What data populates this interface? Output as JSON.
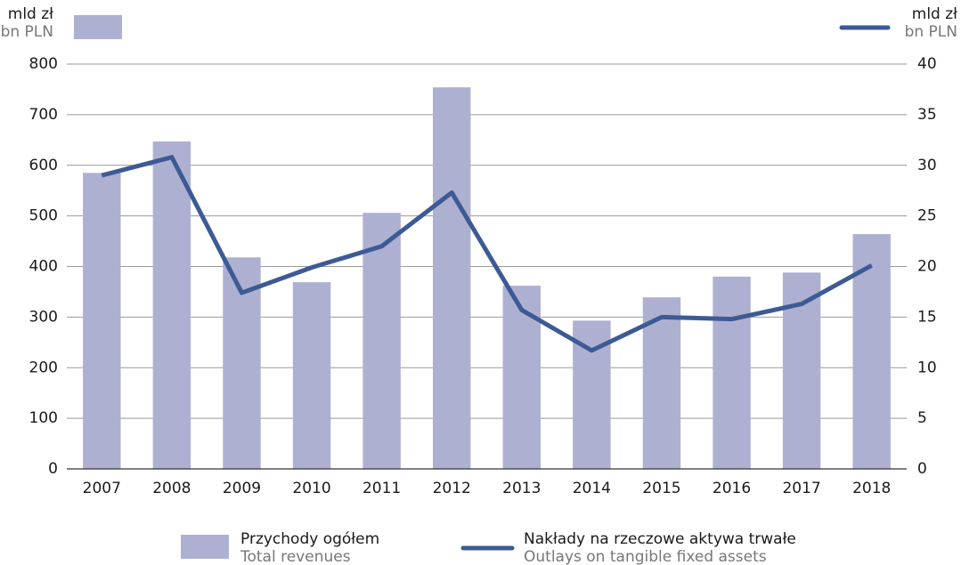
{
  "chart_data": {
    "type": "bar_line",
    "y_label": {
      "pl": "mld zł",
      "en": "bn PLN"
    },
    "y2_label": {
      "pl": "mld zł",
      "en": "bn PLN"
    },
    "categories": [
      "2007",
      "2008",
      "2009",
      "2010",
      "2011",
      "2012",
      "2013",
      "2014",
      "2015",
      "2016",
      "2017",
      "2018"
    ],
    "series": [
      {
        "name": "Przychody ogółem",
        "name_en": "Total revenues",
        "type": "bar",
        "color": "#aeb0d2",
        "values": [
          585,
          647,
          418,
          369,
          506,
          754,
          362,
          293,
          339,
          380,
          388,
          464
        ]
      },
      {
        "name": "Nakłady na rzeczowe aktywa trwałe",
        "name_en": "Outlays on tangible fixed assets",
        "type": "line",
        "axis": "y2",
        "color": "#3d5a94",
        "values": [
          29.0,
          30.8,
          17.4,
          19.9,
          22.0,
          27.3,
          15.7,
          11.7,
          15.0,
          14.8,
          16.3,
          20.1
        ]
      }
    ],
    "ylim": [
      0,
      800
    ],
    "yticks": [
      0,
      100,
      200,
      300,
      400,
      500,
      600,
      700,
      800
    ],
    "y2lim": [
      0,
      40
    ],
    "y2ticks": [
      0,
      5,
      10,
      15,
      20,
      25,
      30,
      35,
      40
    ],
    "grid": true
  }
}
